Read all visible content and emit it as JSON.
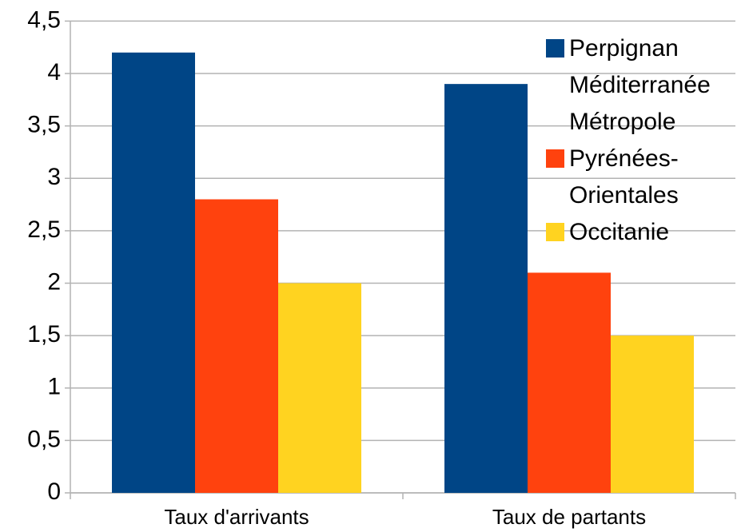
{
  "chart_data": {
    "type": "bar",
    "categories": [
      "Taux d'arrivants",
      "Taux de partants"
    ],
    "series": [
      {
        "name": "Perpignan Méditerranée Métropole",
        "color": "#004586",
        "values": [
          4.2,
          3.9
        ]
      },
      {
        "name": "Pyrénées-Orientales",
        "color": "#ff420e",
        "values": [
          2.8,
          2.1
        ]
      },
      {
        "name": "Occitanie",
        "color": "#ffd320",
        "values": [
          2.0,
          1.5
        ]
      }
    ],
    "ylim": [
      0,
      4.5
    ],
    "yticks": [
      0,
      {
        "value": 0.5,
        "label": "0,5"
      },
      1,
      {
        "value": 1.5,
        "label": "1,5"
      },
      2,
      {
        "value": 2.5,
        "label": "2,5"
      },
      3,
      {
        "value": 3.5,
        "label": "3,5"
      },
      4,
      {
        "value": 4.5,
        "label": "4,5"
      }
    ],
    "grid": true,
    "legend": "right"
  }
}
